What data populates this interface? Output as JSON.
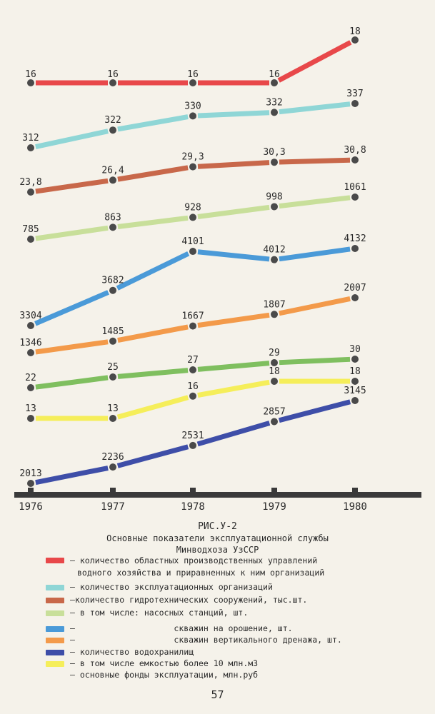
{
  "chart_data": {
    "type": "line",
    "x": [
      1976,
      1977,
      1978,
      1979,
      1980
    ],
    "xlabels": [
      "1976",
      "1977",
      "1978",
      "1979",
      "1980"
    ],
    "legend": "below",
    "grid": false,
    "series": [
      {
        "color": "#e8484a",
        "values": [
          16,
          16,
          16,
          16,
          18
        ],
        "labels": [
          "16",
          "16",
          "16",
          "16",
          "18"
        ]
      },
      {
        "color": "#8fd6d6",
        "values": [
          312,
          322,
          330,
          332,
          337
        ],
        "labels": [
          "312",
          "322",
          "330",
          "332",
          "337"
        ]
      },
      {
        "color": "#c8684a",
        "values": [
          23.8,
          26.4,
          29.3,
          30.3,
          30.8
        ],
        "labels": [
          "23,8",
          "26,4",
          "29,3",
          "30,3",
          "30,8"
        ]
      },
      {
        "color": "#c8df9a",
        "values": [
          785,
          863,
          928,
          998,
          1061
        ],
        "labels": [
          "785",
          "863",
          "928",
          "998",
          "1061"
        ]
      },
      {
        "color": "#4a9ad8",
        "values": [
          3304,
          3682,
          4101,
          4012,
          4132
        ],
        "labels": [
          "3304",
          "3682",
          "4101",
          "4012",
          "4132"
        ]
      },
      {
        "color": "#f39a4a",
        "values": [
          1346,
          1485,
          1667,
          1807,
          2007
        ],
        "labels": [
          "1346",
          "1485",
          "1667",
          "1807",
          "2007"
        ]
      },
      {
        "color": "#7fbf5f",
        "values": [
          22,
          25,
          27,
          29,
          30
        ],
        "labels": [
          "22",
          "25",
          "27",
          "29",
          "30"
        ]
      },
      {
        "color": "#f5ee5a",
        "values": [
          13,
          13,
          16,
          18,
          18
        ],
        "labels": [
          "13",
          "13",
          "16",
          "18",
          "18"
        ]
      },
      {
        "color": "#3e4ea8",
        "values": [
          2013,
          2236,
          2531,
          2857,
          3145
        ],
        "labels": [
          "2013",
          "2236",
          "2531",
          "2857",
          "3145"
        ]
      }
    ]
  },
  "caption": {
    "figure": "РИС.У-2",
    "line1": "Основные показатели эксплуатационной службы",
    "line2": "Минводхоза УзССР"
  },
  "legend_items": [
    {
      "color": "#e8484a",
      "lines": [
        "– количество областных производственных управлений",
        "водного хозяйства и приравненных к ним организаций"
      ]
    },
    {
      "color": "#8fd6d6",
      "lines": [
        "– количество эксплуатационных организаций"
      ]
    },
    {
      "color": "#c8684a",
      "lines": [
        "–количество гидротехнических сооружений, тыс.шт."
      ]
    },
    {
      "color": "#c8df9a",
      "lines": [
        "– в том числе: насосных станций, шт."
      ]
    },
    {
      "color": "#4a9ad8",
      "lines": [
        "–                    скважин на орошение, шт."
      ]
    },
    {
      "color": "#f39a4a",
      "lines": [
        "–                    скважин вертикального дренажа, шт."
      ]
    },
    {
      "color": "#3e4ea8",
      "lines": [
        "– количество водохранилищ"
      ]
    },
    {
      "color": "#f5ee5a",
      "lines": [
        "– в том числе емкостью более 10 млн.м3"
      ]
    },
    {
      "color": null,
      "lines": [
        "– основные фонды эксплуатации, млн.руб"
      ]
    }
  ],
  "page_number": "57"
}
